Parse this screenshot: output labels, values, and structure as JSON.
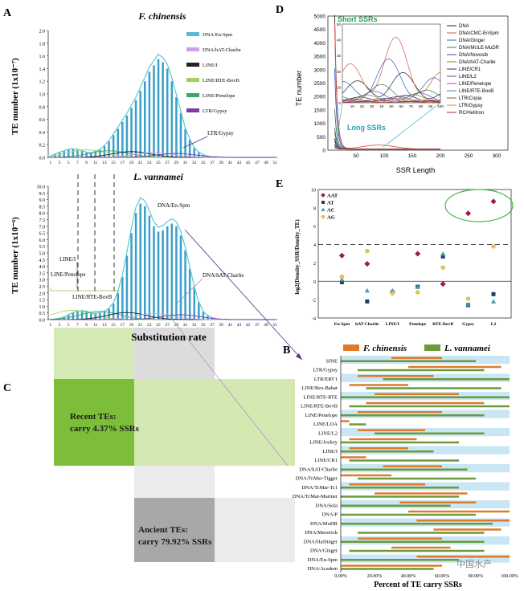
{
  "panels": {
    "A": "A",
    "B": "B",
    "C": "C",
    "D": "D",
    "E": "E"
  },
  "panelA": {
    "top": {
      "title": "F. chinensis",
      "ylabel": "TE number (1x10⁻⁷)",
      "yticks": [
        "0.0",
        "0.2",
        "0.4",
        "0.6",
        "0.8",
        "1.0",
        "1.2",
        "1.4",
        "1.6",
        "1.8",
        "2.0"
      ],
      "ymax": 2.0,
      "legend": [
        "DNA/En-Spm",
        "DNA/hAT-Charlie",
        "LINE/I",
        "LINE/RTE-BovB",
        "LINE/Penelope",
        "LTR/Gypsy"
      ],
      "legend_colors": [
        "#5bb8d4",
        "#c9a3e8",
        "#222222",
        "#a6d45a",
        "#3aa86b",
        "#7a3aa8"
      ],
      "annotation": "LTR/Gypsy",
      "peak_value": 1.55,
      "bars": [
        0.02,
        0.05,
        0.08,
        0.1,
        0.12,
        0.13,
        0.12,
        0.1,
        0.08,
        0.07,
        0.09,
        0.12,
        0.18,
        0.25,
        0.35,
        0.45,
        0.56,
        0.66,
        0.78,
        0.9,
        1.05,
        1.2,
        1.35,
        1.45,
        1.55,
        1.5,
        1.4,
        1.2,
        0.95,
        0.7,
        0.45,
        0.28,
        0.15,
        0.08,
        0.04,
        0.02,
        0.01,
        0.01,
        0.0,
        0.0,
        0.0,
        0.0,
        0.0,
        0.0,
        0.0,
        0.0,
        0.0,
        0.0,
        0.0,
        0.0,
        0.0
      ]
    },
    "bottom": {
      "title": "L. vannamei",
      "ylabel": "TE number (1x10⁻⁶)",
      "yticks": [
        "0.0",
        "0.5",
        "1.0",
        "1.5",
        "2.0",
        "2.5",
        "3.0",
        "3.5",
        "4.0",
        "4.5",
        "5.0",
        "5.5",
        "6.0",
        "6.5",
        "7.0",
        "7.5",
        "8.0",
        "8.5",
        "9.0",
        "9.5",
        "10.0"
      ],
      "ymax": 10.0,
      "annotations": [
        "DNA/En-Spm",
        "DNA/hAT-Charlie",
        "LINE/I",
        "LINE/Penelope",
        "LINE/RTE-BovB"
      ],
      "bars": [
        0.0,
        0.05,
        0.1,
        0.2,
        0.35,
        0.5,
        0.6,
        0.65,
        0.6,
        0.5,
        0.45,
        0.5,
        0.6,
        0.8,
        1.2,
        2.0,
        3.2,
        4.8,
        6.5,
        8.0,
        8.7,
        8.5,
        7.8,
        7.0,
        6.6,
        6.7,
        7.0,
        7.2,
        7.0,
        6.3,
        5.2,
        3.8,
        2.4,
        1.3,
        0.6,
        0.3,
        0.15,
        0.05,
        0.02,
        0.0,
        0.0,
        0.0,
        0.0,
        0.0,
        0.0,
        0.0,
        0.0,
        0.0,
        0.0,
        0.0,
        0.0
      ]
    },
    "xticks": [
      "1",
      "3",
      "5",
      "7",
      "9",
      "11",
      "13",
      "15",
      "17",
      "19",
      "21",
      "23",
      "25",
      "27",
      "29",
      "31",
      "33",
      "35",
      "37",
      "39",
      "41",
      "43",
      "45",
      "47",
      "49",
      "51"
    ],
    "xlabel": "Substitution rate"
  },
  "panelC": {
    "recent": "Recent TEs:\ncarry 4.37% SSRs",
    "recent_l1": "Recent TEs:",
    "recent_l2": "carry 4.37% SSRs",
    "ancient_l1": "Ancient TEs:",
    "ancient_l2": "carry 79.92% SSRs"
  },
  "panelD": {
    "ylabel": "TE number",
    "xlabel": "SSR Length",
    "yticks": [
      "0",
      "500",
      "1000",
      "1500",
      "2000",
      "2500",
      "3000",
      "3500",
      "4000",
      "4500",
      "5000"
    ],
    "xticks": [
      "50",
      "100",
      "150",
      "200",
      "250",
      "300"
    ],
    "inset_yticks": [
      "0",
      "10",
      "20",
      "30",
      "40",
      "50"
    ],
    "inset_xticks": [
      "10",
      "20",
      "30",
      "40",
      "50",
      "60",
      "70",
      "80",
      "90",
      "100"
    ],
    "short_label": "Short SSRs",
    "long_label": "Long SSRs",
    "legend": [
      "DNA",
      "DNA/CMC-EnSpm",
      "DNA/Ginger",
      "DNA/MULE-MuDR",
      "DNA/Novosib",
      "DNA/hAT-Charlie",
      "LINE/CR1",
      "LINE/L2",
      "LINE/Penelope",
      "LINE/RTE-BovB",
      "LTR/Copia",
      "LTR/Gypsy",
      "RC/Helitron"
    ],
    "legend_colors": [
      "#222222",
      "#d9534f",
      "#3060c0",
      "#2a8a3a",
      "#6a3aa8",
      "#9a8a20",
      "#2a2a8a",
      "#555555",
      "#c03a8a",
      "#4a7ac0",
      "#8a5a2a",
      "#e08a3a",
      "#a03030"
    ]
  },
  "panelE": {
    "ylabel": "log2(Density_SSR/Density_TE)",
    "yticks": [
      "-4",
      "-2",
      "0",
      "2",
      "4",
      "6",
      "8",
      "10"
    ],
    "categories": [
      "En-Spm",
      "hAT-Charlie",
      "LINE/I",
      "Penelope",
      "RTE-BovB",
      "Gypsy",
      "L2"
    ],
    "legend": [
      "AAT",
      "AT",
      "AC",
      "AG"
    ],
    "legend_colors": [
      "#a01c3c",
      "#1f3a6e",
      "#3aa0a0",
      "#e0c060"
    ],
    "points": {
      "AAT": [
        2.8,
        1.9,
        -1.2,
        3.0,
        -0.3,
        7.4,
        8.7
      ],
      "AT": [
        -0.1,
        -2.2,
        -1.2,
        -0.6,
        2.7,
        -2.6,
        -1.4
      ],
      "AC": [
        0.2,
        -1.0,
        -1.0,
        -0.6,
        3.0,
        -2.5,
        -2.2
      ],
      "AG": [
        0.5,
        3.3,
        -1.3,
        -1.2,
        1.5,
        -1.9,
        3.8
      ]
    },
    "dashed_y": 4
  },
  "panelB": {
    "legend": [
      "F. chinensis",
      "L. vannamei"
    ],
    "legend_colors": [
      "#e07a2a",
      "#6a9a3a"
    ],
    "xlabel": "Percent of TE carry SSRs",
    "xticks": [
      "0.00%",
      "20.00%",
      "40.00%",
      "60.00%",
      "80.00%",
      "100.00%"
    ],
    "categories": [
      "SINE",
      "LTR/Gypsy",
      "LTR/ERV1",
      "LINE/Rex-Babar",
      "LINE/RTE-RTE",
      "LINE/RTE-BovB",
      "LINE/Penelope",
      "LINE/LOA",
      "LINE/L2",
      "LINE/Jockey",
      "LINE/I",
      "LINE/CR1",
      "DNA/hAT-Charlie",
      "DNA/TcMar-Tigger",
      "DNA/TcMar-Tc1",
      "DNA/TcMar-Mariner",
      "DNA/Sola",
      "DNA/P",
      "DNA/MuDR",
      "DNA/Maverick",
      "DNA/Harbinger",
      "DNA/Ginger",
      "DNA/En-Spm",
      "DNA/Academ"
    ],
    "fc": [
      [
        30,
        60
      ],
      [
        40,
        95
      ],
      [
        10,
        55
      ],
      [
        5,
        40
      ],
      [
        20,
        70
      ],
      [
        15,
        85
      ],
      [
        10,
        60
      ],
      [
        0,
        5
      ],
      [
        10,
        50
      ],
      [
        5,
        45
      ],
      [
        5,
        40
      ],
      [
        0,
        15
      ],
      [
        25,
        60
      ],
      [
        0,
        30
      ],
      [
        5,
        50
      ],
      [
        20,
        75
      ],
      [
        35,
        80
      ],
      [
        40,
        100
      ],
      [
        45,
        100
      ],
      [
        55,
        95
      ],
      [
        10,
        60
      ],
      [
        30,
        65
      ],
      [
        45,
        100
      ],
      [
        0,
        60
      ]
    ],
    "lv": [
      [
        0,
        80
      ],
      [
        10,
        85
      ],
      [
        25,
        100
      ],
      [
        15,
        95
      ],
      [
        0,
        100
      ],
      [
        5,
        100
      ],
      [
        0,
        85
      ],
      [
        5,
        15
      ],
      [
        20,
        85
      ],
      [
        0,
        70
      ],
      [
        0,
        55
      ],
      [
        5,
        70
      ],
      [
        0,
        75
      ],
      [
        10,
        80
      ],
      [
        0,
        70
      ],
      [
        0,
        70
      ],
      [
        0,
        65
      ],
      [
        0,
        80
      ],
      [
        0,
        90
      ],
      [
        10,
        85
      ],
      [
        0,
        85
      ],
      [
        5,
        85
      ],
      [
        0,
        70
      ],
      [
        0,
        55
      ]
    ]
  },
  "watermark": "中国水产"
}
